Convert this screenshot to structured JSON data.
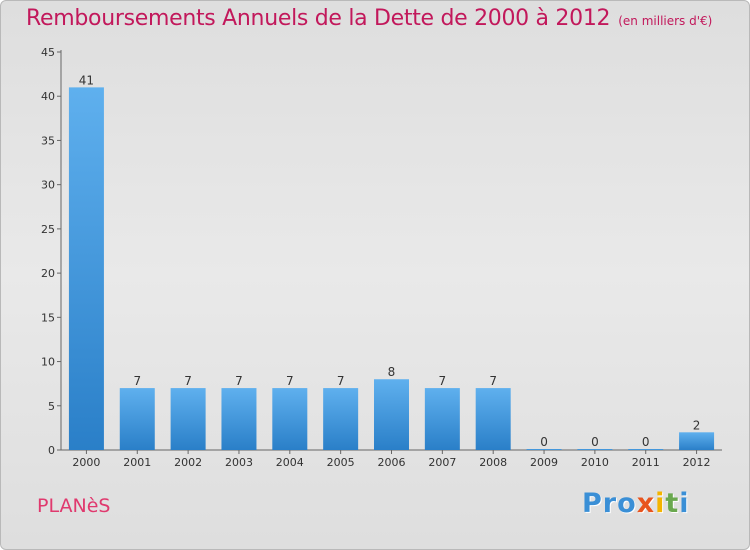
{
  "title": "Remboursements Annuels de la Dette de 2000 à 2012",
  "unit": "(en milliers d'€)",
  "commune": "PLANèS",
  "logo": {
    "letters": [
      {
        "char": "P",
        "color": "#3a8fd6"
      },
      {
        "char": "r",
        "color": "#3a8fd6"
      },
      {
        "char": "o",
        "color": "#3a8fd6"
      },
      {
        "char": "x",
        "color": "#e8541e"
      },
      {
        "char": "i",
        "color": "#f4b400"
      },
      {
        "char": "t",
        "color": "#6aa84f"
      },
      {
        "char": "i",
        "color": "#3a8fd6"
      }
    ]
  },
  "chart_data": {
    "type": "bar",
    "categories": [
      "2000",
      "2001",
      "2002",
      "2003",
      "2004",
      "2005",
      "2006",
      "2007",
      "2008",
      "2009",
      "2010",
      "2011",
      "2012"
    ],
    "values": [
      41,
      7,
      7,
      7,
      7,
      7,
      8,
      7,
      7,
      0,
      0,
      0,
      2
    ],
    "title": "Remboursements Annuels de la Dette de 2000 à 2012",
    "xlabel": "",
    "ylabel": "",
    "ylim": [
      0,
      45
    ],
    "yticks": [
      0,
      5,
      10,
      15,
      20,
      25,
      30,
      35,
      40,
      45
    ],
    "grid": false,
    "bar_color": "#3d95dc"
  }
}
